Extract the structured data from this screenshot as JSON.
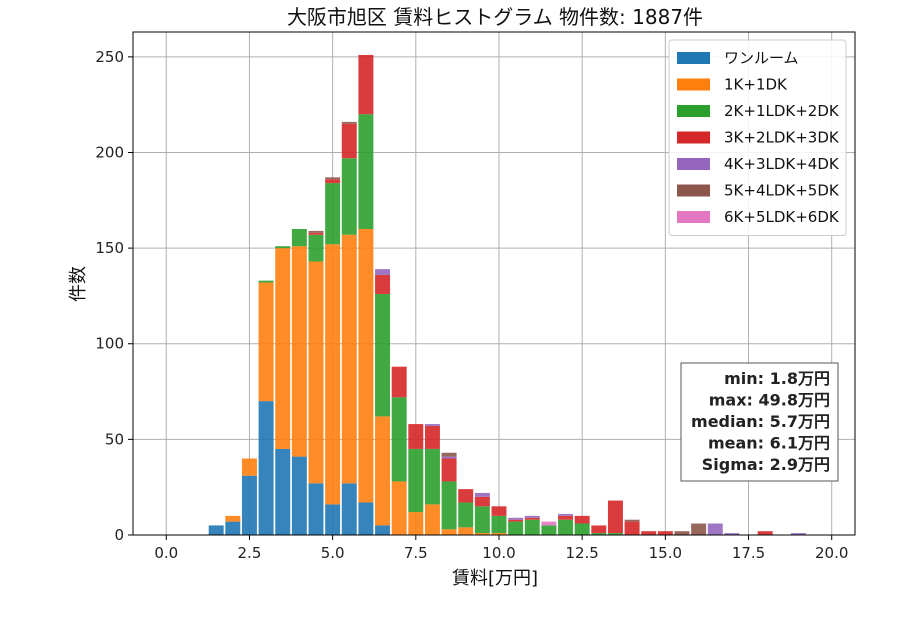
{
  "chart_data": {
    "type": "bar",
    "stacked": true,
    "title": "大阪市旭区 賃料ヒストグラム 物件数: 1887件",
    "xlabel": "賃料[万円]",
    "ylabel": "件数",
    "xlim": [
      -1.0,
      20.7
    ],
    "ylim": [
      0,
      263
    ],
    "xticks": [
      0.0,
      2.5,
      5.0,
      7.5,
      10.0,
      12.5,
      15.0,
      17.5,
      20.0
    ],
    "xtick_labels": [
      "0.0",
      "2.5",
      "5.0",
      "7.5",
      "10.0",
      "12.5",
      "15.0",
      "17.5",
      "20.0"
    ],
    "yticks": [
      0,
      50,
      100,
      150,
      200,
      250
    ],
    "ytick_labels": [
      "0",
      "50",
      "100",
      "150",
      "200",
      "250"
    ],
    "grid": true,
    "legend_position": "top-right",
    "bin_width": 0.5,
    "x": [
      1.5,
      2.0,
      2.5,
      3.0,
      3.5,
      4.0,
      4.5,
      5.0,
      5.5,
      6.0,
      6.5,
      7.0,
      7.5,
      8.0,
      8.5,
      9.0,
      9.5,
      10.0,
      10.5,
      11.0,
      11.5,
      12.0,
      12.5,
      13.0,
      13.5,
      14.0,
      14.5,
      15.0,
      15.5,
      16.0,
      16.5,
      17.0,
      17.5,
      18.0,
      18.5,
      19.0,
      19.5
    ],
    "series": [
      {
        "name": "ワンルーム",
        "color": "#1f77b4",
        "values": [
          5,
          7,
          31,
          70,
          45,
          41,
          27,
          16,
          27,
          17,
          5,
          0,
          0,
          0,
          0,
          0,
          0,
          0,
          0,
          0,
          0,
          0,
          0,
          0,
          0,
          0,
          0,
          0,
          0,
          0,
          0,
          0,
          0,
          0,
          0,
          0,
          0
        ]
      },
      {
        "name": "1K+1DK",
        "color": "#ff7f0e",
        "values": [
          0,
          3,
          9,
          62,
          105,
          110,
          116,
          136,
          130,
          143,
          57,
          28,
          12,
          16,
          3,
          4,
          1,
          1,
          0,
          0,
          0,
          0,
          0,
          0,
          0,
          0,
          0,
          0,
          0,
          0,
          0,
          0,
          0,
          0,
          0,
          0,
          0
        ]
      },
      {
        "name": "2K+1LDK+2DK",
        "color": "#2ca02c",
        "values": [
          0,
          0,
          0,
          1,
          1,
          9,
          14,
          32,
          40,
          60,
          64,
          44,
          33,
          29,
          25,
          13,
          14,
          9,
          7,
          8,
          5,
          8,
          6,
          1,
          1,
          0,
          0,
          0,
          0,
          0,
          0,
          0,
          0,
          0,
          0,
          0,
          0
        ]
      },
      {
        "name": "3K+2LDK+3DK",
        "color": "#d62728",
        "values": [
          0,
          0,
          0,
          0,
          0,
          0,
          1,
          2,
          18,
          31,
          10,
          16,
          13,
          12,
          12,
          7,
          5,
          5,
          1,
          1,
          0,
          2,
          4,
          4,
          17,
          7,
          2,
          2,
          0,
          0,
          0,
          0,
          0,
          2,
          0,
          0,
          0
        ]
      },
      {
        "name": "4K+3LDK+4DK",
        "color": "#9467bd",
        "values": [
          0,
          0,
          0,
          0,
          0,
          0,
          0,
          0,
          0,
          0,
          3,
          0,
          0,
          1,
          1,
          0,
          2,
          0,
          1,
          1,
          0,
          1,
          0,
          0,
          0,
          0,
          0,
          0,
          0,
          0,
          6,
          1,
          0,
          0,
          0,
          1,
          0
        ]
      },
      {
        "name": "5K+4LDK+5DK",
        "color": "#8c564b",
        "values": [
          0,
          0,
          0,
          0,
          0,
          0,
          1,
          1,
          1,
          0,
          0,
          0,
          0,
          0,
          2,
          0,
          0,
          0,
          0,
          0,
          0,
          0,
          0,
          0,
          0,
          1,
          0,
          0,
          2,
          6,
          0,
          0,
          0,
          0,
          0,
          0,
          0
        ]
      },
      {
        "name": "6K+5LDK+6DK",
        "color": "#e377c2",
        "values": [
          0,
          0,
          0,
          0,
          0,
          0,
          0,
          0,
          0,
          0,
          0,
          0,
          0,
          0,
          0,
          0,
          0,
          0,
          0,
          0,
          2,
          0,
          0,
          0,
          0,
          0,
          0,
          0,
          0,
          0,
          0,
          0,
          0,
          0,
          0,
          0,
          0
        ]
      }
    ],
    "stats_box": [
      "min: 1.8万円",
      "max: 49.8万円",
      "median: 5.7万円",
      "mean: 6.1万円",
      "Sigma: 2.9万円"
    ]
  }
}
